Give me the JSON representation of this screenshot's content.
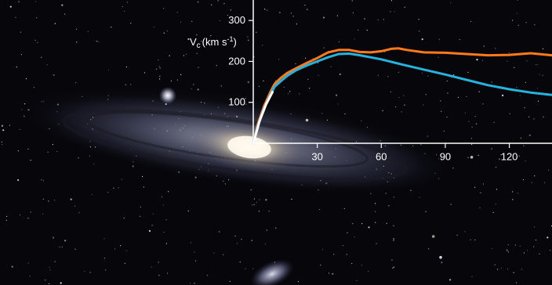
{
  "chart_data": {
    "type": "line",
    "title": "",
    "ylabel": {
      "symbol": "V",
      "subscript": "c",
      "units": "(km s",
      "exp": "-1",
      "close": ")"
    },
    "xlabel": "",
    "xlim": [
      0,
      140
    ],
    "ylim": [
      0,
      350
    ],
    "x_ticks": [
      30,
      60,
      90,
      120
    ],
    "y_ticks": [
      100,
      200,
      300
    ],
    "grid": false,
    "legend": "none",
    "series": [
      {
        "color": "#ff7a1a",
        "x": [
          0,
          2,
          5,
          8,
          10,
          13,
          16,
          20,
          25,
          30,
          35,
          40,
          45,
          50,
          55,
          60,
          65,
          68,
          72,
          80,
          90,
          100,
          110,
          120,
          130,
          140
        ],
        "y": [
          0,
          45,
          90,
          125,
          145,
          160,
          172,
          183,
          196,
          208,
          222,
          228,
          228,
          223,
          222,
          225,
          231,
          232,
          228,
          222,
          221,
          218,
          215,
          216,
          220,
          215
        ]
      },
      {
        "color": "#26b3dd",
        "x": [
          0,
          2,
          5,
          8,
          10,
          13,
          16,
          20,
          25,
          30,
          35,
          40,
          45,
          50,
          55,
          60,
          70,
          80,
          90,
          100,
          110,
          120,
          130,
          140
        ],
        "y": [
          0,
          40,
          85,
          118,
          138,
          152,
          165,
          178,
          190,
          200,
          210,
          218,
          219,
          215,
          210,
          205,
          192,
          180,
          168,
          155,
          142,
          132,
          124,
          118
        ]
      }
    ]
  }
}
